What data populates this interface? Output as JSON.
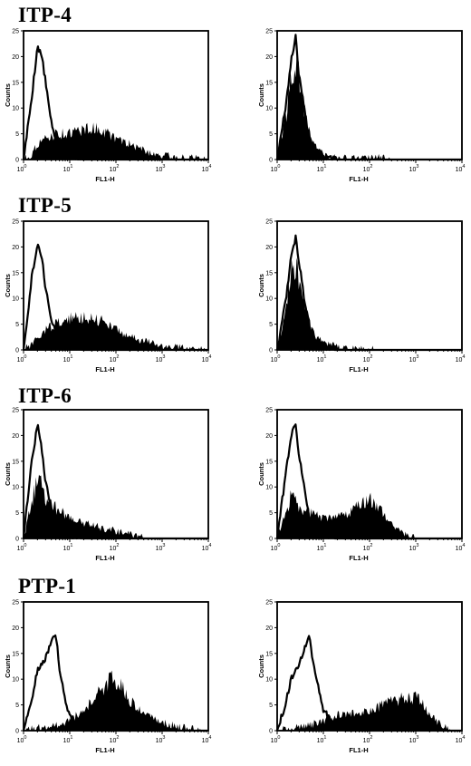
{
  "chart_data": [
    {
      "type": "area",
      "group": "ITP-4",
      "xlabel": "FL1-H",
      "ylabel": "Counts",
      "x_scale": "log",
      "xlim": [
        1,
        10000
      ],
      "ylim": [
        0,
        25
      ],
      "yticks": [
        "0",
        "5",
        "10",
        "15",
        "20",
        "25"
      ],
      "xticks": [
        "10",
        "10",
        "10",
        "10",
        "10"
      ],
      "xtick_exponents": [
        "0",
        "1",
        "2",
        "3",
        "4"
      ],
      "series": [
        {
          "style": "outline",
          "x": [
            1,
            1.5,
            2,
            2.5,
            3,
            4,
            5,
            7,
            10,
            20
          ],
          "y": [
            0,
            12,
            22,
            20,
            15,
            7,
            4,
            2,
            1,
            0
          ]
        },
        {
          "style": "filled",
          "x": [
            1,
            1.5,
            2,
            3,
            5,
            10,
            20,
            40,
            70,
            100,
            200,
            500,
            1000,
            3000,
            10000
          ],
          "y": [
            0,
            1,
            3,
            4,
            5,
            5,
            6,
            6,
            5,
            4,
            3,
            1.5,
            0.8,
            0.3,
            0
          ]
        }
      ]
    },
    {
      "type": "area",
      "group": "ITP-4",
      "xlabel": "FL1-H",
      "ylabel": "Counts",
      "x_scale": "log",
      "xlim": [
        1,
        10000
      ],
      "ylim": [
        0,
        25
      ],
      "yticks": [
        "0",
        "5",
        "10",
        "15",
        "20",
        "25"
      ],
      "xticks": [
        "10",
        "10",
        "10",
        "10",
        "10"
      ],
      "xtick_exponents": [
        "0",
        "1",
        "2",
        "3",
        "4"
      ],
      "series": [
        {
          "style": "outline",
          "x": [
            1,
            1.5,
            2,
            2.5,
            3,
            4,
            5,
            7,
            10,
            20
          ],
          "y": [
            0,
            10,
            19,
            24,
            16,
            9,
            4,
            2,
            0.5,
            0
          ]
        },
        {
          "style": "filled",
          "x": [
            1,
            1.5,
            2,
            2.5,
            3,
            4,
            5,
            7,
            10,
            15,
            30,
            100,
            200,
            300
          ],
          "y": [
            0,
            8,
            15,
            20,
            15,
            9,
            5,
            2,
            1,
            0.5,
            0.2,
            0.2,
            0.3,
            0
          ]
        }
      ]
    },
    {
      "type": "area",
      "group": "ITP-5",
      "xlabel": "FL1-H",
      "ylabel": "Counts",
      "x_scale": "log",
      "xlim": [
        1,
        10000
      ],
      "ylim": [
        0,
        25
      ],
      "yticks": [
        "0",
        "5",
        "10",
        "15",
        "20",
        "25"
      ],
      "xticks": [
        "10",
        "10",
        "10",
        "10",
        "10"
      ],
      "xtick_exponents": [
        "0",
        "1",
        "2",
        "3",
        "4"
      ],
      "series": [
        {
          "style": "outline",
          "x": [
            1,
            1.5,
            2,
            2.5,
            3,
            4,
            5,
            7,
            10,
            20
          ],
          "y": [
            0,
            14,
            21,
            18,
            12,
            6,
            3,
            1.5,
            0.8,
            0
          ]
        },
        {
          "style": "filled",
          "x": [
            1,
            1.5,
            2,
            3,
            5,
            10,
            20,
            40,
            70,
            100,
            200,
            500,
            1000,
            3000,
            10000
          ],
          "y": [
            0,
            1,
            2,
            4,
            5,
            6,
            6.5,
            6,
            5,
            4,
            2.5,
            1.5,
            0.8,
            0.3,
            0
          ]
        }
      ]
    },
    {
      "type": "area",
      "group": "ITP-5",
      "xlabel": "FL1-H",
      "ylabel": "Counts",
      "x_scale": "log",
      "xlim": [
        1,
        10000
      ],
      "ylim": [
        0,
        25
      ],
      "yticks": [
        "0",
        "5",
        "10",
        "15",
        "20",
        "25"
      ],
      "xticks": [
        "10",
        "10",
        "10",
        "10",
        "10"
      ],
      "xtick_exponents": [
        "0",
        "1",
        "2",
        "3",
        "4"
      ],
      "series": [
        {
          "style": "outline",
          "x": [
            1,
            1.5,
            2,
            2.5,
            3,
            4,
            5,
            7,
            10,
            20
          ],
          "y": [
            0,
            9,
            18,
            22,
            17,
            9,
            4,
            1.5,
            0.5,
            0
          ]
        },
        {
          "style": "filled",
          "x": [
            1,
            1.5,
            2,
            2.5,
            3,
            4,
            5,
            7,
            10,
            20,
            50,
            100,
            200
          ],
          "y": [
            0,
            7,
            14,
            18,
            14,
            9,
            5,
            2.5,
            1.2,
            0.5,
            0.2,
            0.1,
            0
          ]
        }
      ]
    },
    {
      "type": "area",
      "group": "ITP-6",
      "xlabel": "FL1-H",
      "ylabel": "Counts",
      "x_scale": "log",
      "xlim": [
        1,
        10000
      ],
      "ylim": [
        0,
        25
      ],
      "yticks": [
        "0",
        "5",
        "10",
        "15",
        "20",
        "25"
      ],
      "xticks": [
        "10",
        "10",
        "10",
        "10",
        "10"
      ],
      "xtick_exponents": [
        "0",
        "1",
        "2",
        "3",
        "4"
      ],
      "series": [
        {
          "style": "outline",
          "x": [
            1,
            1.5,
            2,
            2.5,
            3,
            4,
            5,
            7,
            10,
            20
          ],
          "y": [
            0,
            15,
            22,
            17,
            11,
            6,
            3,
            1.5,
            0.7,
            0
          ]
        },
        {
          "style": "filled",
          "x": [
            1,
            1.5,
            2,
            2.5,
            3,
            5,
            10,
            20,
            50,
            100,
            200,
            300,
            400
          ],
          "y": [
            0,
            7,
            12,
            10,
            8,
            6,
            4,
            3,
            2,
            1.5,
            1,
            0.5,
            0
          ]
        }
      ]
    },
    {
      "type": "area",
      "group": "ITP-6",
      "xlabel": "FL1-H",
      "ylabel": "Counts",
      "x_scale": "log",
      "xlim": [
        1,
        10000
      ],
      "ylim": [
        0,
        25
      ],
      "yticks": [
        "0",
        "5",
        "10",
        "15",
        "20",
        "25"
      ],
      "xticks": [
        "10",
        "10",
        "10",
        "10",
        "10"
      ],
      "xtick_exponents": [
        "0",
        "1",
        "2",
        "3",
        "4"
      ],
      "series": [
        {
          "style": "outline",
          "x": [
            1,
            1.5,
            2,
            2.5,
            3,
            4,
            5,
            7,
            10,
            20
          ],
          "y": [
            0,
            12,
            20,
            22,
            16,
            9,
            4,
            2,
            1,
            0
          ]
        },
        {
          "style": "filled",
          "x": [
            1,
            1.5,
            2,
            3,
            5,
            10,
            20,
            40,
            70,
            100,
            150,
            300,
            500,
            1000
          ],
          "y": [
            0,
            5,
            8,
            6,
            5,
            4,
            4,
            5,
            7,
            8,
            6,
            3,
            1,
            0
          ]
        }
      ]
    },
    {
      "type": "area",
      "group": "PTP-1",
      "xlabel": "FL1-H",
      "ylabel": "Counts",
      "x_scale": "log",
      "xlim": [
        1,
        10000
      ],
      "ylim": [
        0,
        25
      ],
      "yticks": [
        "0",
        "5",
        "10",
        "15",
        "20",
        "25"
      ],
      "xticks": [
        "10",
        "10",
        "10",
        "10",
        "10"
      ],
      "xtick_exponents": [
        "0",
        "1",
        "2",
        "3",
        "4"
      ],
      "series": [
        {
          "style": "outline",
          "x": [
            1,
            1.5,
            2,
            3,
            4,
            5,
            6,
            8,
            10,
            15,
            20
          ],
          "y": [
            0,
            6,
            12,
            14,
            17,
            19,
            12,
            6,
            3,
            1,
            0
          ]
        },
        {
          "style": "filled",
          "x": [
            1,
            2,
            5,
            10,
            20,
            50,
            80,
            120,
            200,
            500,
            1000,
            3000,
            5000,
            10000
          ],
          "y": [
            0,
            0.5,
            1,
            2,
            4,
            8,
            10,
            9,
            6,
            3,
            1.5,
            0.5,
            0.2,
            0
          ]
        }
      ]
    },
    {
      "type": "area",
      "group": "PTP-1",
      "xlabel": "FL1-H",
      "ylabel": "Counts",
      "x_scale": "log",
      "xlim": [
        1,
        10000
      ],
      "ylim": [
        0,
        25
      ],
      "yticks": [
        "0",
        "5",
        "10",
        "15",
        "20",
        "25"
      ],
      "xticks": [
        "10",
        "10",
        "10",
        "10",
        "10"
      ],
      "xtick_exponents": [
        "0",
        "1",
        "2",
        "3",
        "4"
      ],
      "series": [
        {
          "style": "outline",
          "x": [
            1,
            1.5,
            2,
            3,
            4,
            5,
            6,
            8,
            10,
            15,
            20,
            30
          ],
          "y": [
            0,
            5,
            10,
            13,
            16,
            19,
            13,
            8,
            4,
            2,
            1,
            0
          ]
        },
        {
          "style": "filled",
          "x": [
            1,
            2,
            5,
            10,
            20,
            50,
            100,
            200,
            400,
            800,
            1200,
            2000,
            4000,
            6000
          ],
          "y": [
            0,
            0.5,
            1,
            2,
            3,
            3.5,
            4,
            5,
            6,
            6.5,
            6,
            3,
            1,
            0
          ]
        }
      ]
    }
  ],
  "rows": [
    {
      "title": "ITP-4"
    },
    {
      "title": "ITP-5"
    },
    {
      "title": "ITP-6"
    },
    {
      "title": "PTP-1"
    }
  ]
}
